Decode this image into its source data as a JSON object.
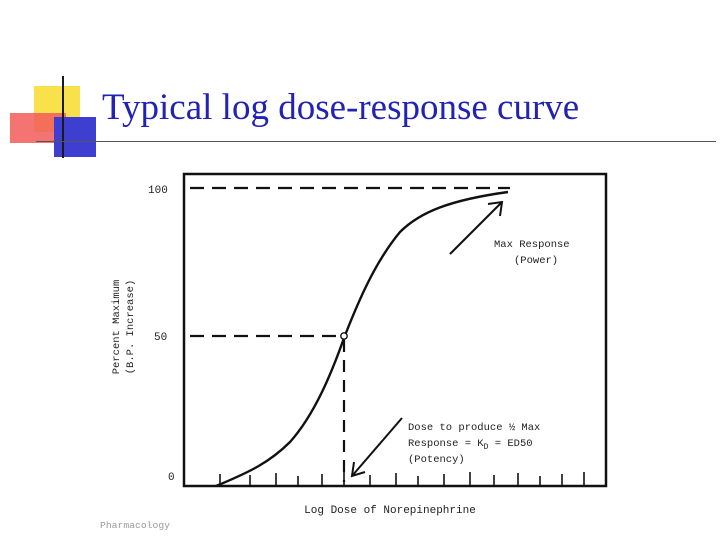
{
  "slide": {
    "title": "Typical log dose-response curve"
  },
  "figure": {
    "y_axis_label_line1": "Percent Maximum",
    "y_axis_label_line2": "(B.P. Increase)",
    "x_axis_label": "Log Dose of Norepinephrine",
    "y_ticks": [
      "100",
      "50",
      "0"
    ],
    "annotation_max_line1": "Max Response",
    "annotation_max_line2": "(Power)",
    "annotation_ed50_line1": "Dose to produce ½ Max",
    "annotation_ed50_line2": "Response = K",
    "annotation_ed50_sub": "D",
    "annotation_ed50_line2b": " = ED50",
    "annotation_ed50_line3": "(Potency)",
    "footer_fragment": "Pharmacology"
  },
  "colors": {
    "title": "#2222b5",
    "accent_yellow": "#f9e14b",
    "accent_red": "#f25a5a",
    "accent_blue": "#3e3fd0"
  }
}
